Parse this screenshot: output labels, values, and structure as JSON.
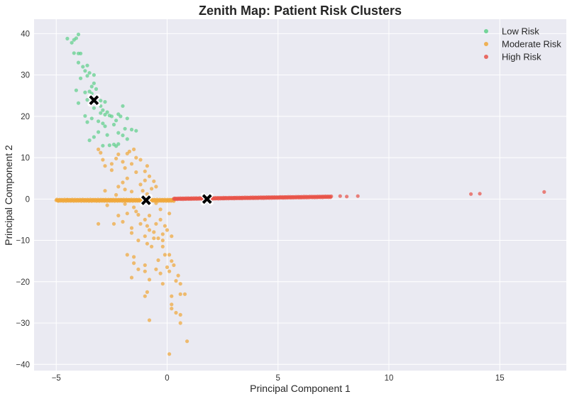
{
  "chart_data": {
    "type": "scatter",
    "title": "Zenith Map: Patient Risk Clusters",
    "xlabel": "Principal Component 1",
    "ylabel": "Principal Component 2",
    "xlim": [
      -6.0,
      18.0
    ],
    "ylim": [
      -41.5,
      43.5
    ],
    "xticks": [
      -5,
      0,
      5,
      10,
      15
    ],
    "yticks": [
      -40,
      -30,
      -20,
      -10,
      0,
      10,
      20,
      30,
      40
    ],
    "grid": true,
    "legend_position": "top-right",
    "series": [
      {
        "name": "Low Risk",
        "color": "#5fd08a",
        "points": [
          [
            -4.5,
            38.8
          ],
          [
            -4.3,
            37.8
          ],
          [
            -4.2,
            38.5
          ],
          [
            -4.0,
            39.8
          ],
          [
            -4.1,
            38.9
          ],
          [
            -4.2,
            35.3
          ],
          [
            -4.0,
            35.2
          ],
          [
            -3.9,
            35.2
          ],
          [
            -4.0,
            33.0
          ],
          [
            -3.8,
            32.0
          ],
          [
            -3.6,
            32.3
          ],
          [
            -3.7,
            31.0
          ],
          [
            -3.5,
            30.5
          ],
          [
            -3.3,
            30.0
          ],
          [
            -3.6,
            29.8
          ],
          [
            -3.9,
            29.2
          ],
          [
            -3.3,
            28.0
          ],
          [
            -3.4,
            27.2
          ],
          [
            -3.2,
            26.6
          ],
          [
            -3.5,
            26.0
          ],
          [
            -3.7,
            25.8
          ],
          [
            -3.4,
            25.5
          ],
          [
            -4.1,
            26.3
          ],
          [
            -4.0,
            23.2
          ],
          [
            -3.6,
            24.0
          ],
          [
            -3.2,
            24.5
          ],
          [
            -3.0,
            23.8
          ],
          [
            -2.8,
            23.5
          ],
          [
            -3.0,
            22.5
          ],
          [
            -3.3,
            22.0
          ],
          [
            -2.9,
            21.5
          ],
          [
            -2.7,
            21.0
          ],
          [
            -2.8,
            20.4
          ],
          [
            -3.0,
            20.8
          ],
          [
            -2.6,
            20.2
          ],
          [
            -2.5,
            20.0
          ],
          [
            -3.7,
            20.1
          ],
          [
            -3.4,
            19.5
          ],
          [
            -3.1,
            18.8
          ],
          [
            -2.9,
            18.3
          ],
          [
            -2.8,
            17.6
          ],
          [
            -3.6,
            18.6
          ],
          [
            -2.2,
            20.5
          ],
          [
            -2.0,
            22.5
          ],
          [
            -2.1,
            20.0
          ],
          [
            -2.3,
            19.0
          ],
          [
            -2.4,
            18.0
          ],
          [
            -1.9,
            17.0
          ],
          [
            -1.8,
            19.5
          ],
          [
            -1.6,
            16.8
          ],
          [
            -1.4,
            16.5
          ],
          [
            -2.2,
            16.0
          ],
          [
            -2.7,
            15.5
          ],
          [
            -3.1,
            16.2
          ],
          [
            -3.3,
            15.0
          ],
          [
            -3.5,
            14.2
          ],
          [
            -2.4,
            13.2
          ],
          [
            -2.2,
            13.3
          ],
          [
            -2.3,
            12.8
          ],
          [
            -2.6,
            13.0
          ],
          [
            -2.9,
            12.9
          ],
          [
            -1.8,
            14.5
          ],
          [
            -2.0,
            15.4
          ]
        ]
      },
      {
        "name": "Moderate Risk",
        "color": "#f0a73a",
        "band": {
          "x_from": -5.0,
          "x_to": 0.3,
          "y": -0.3,
          "count": 170
        },
        "points": [
          [
            -4.9,
            -0.4
          ],
          [
            -4.5,
            -0.2
          ],
          [
            -3.1,
            12.0
          ],
          [
            -3.0,
            11.2
          ],
          [
            -2.9,
            9.5
          ],
          [
            -2.8,
            8.0
          ],
          [
            -2.5,
            7.0
          ],
          [
            -2.5,
            8.5
          ],
          [
            -2.2,
            10.8
          ],
          [
            -2.3,
            9.8
          ],
          [
            -2.0,
            9.0
          ],
          [
            -1.7,
            11.5
          ],
          [
            -1.8,
            11.0
          ],
          [
            -1.5,
            12.0
          ],
          [
            -1.4,
            10.0
          ],
          [
            -1.6,
            8.5
          ],
          [
            -1.2,
            9.5
          ],
          [
            -1.9,
            7.5
          ],
          [
            -1.4,
            6.5
          ],
          [
            -1.8,
            5.0
          ],
          [
            -1.0,
            6.7
          ],
          [
            -0.9,
            8.0
          ],
          [
            -0.8,
            5.5
          ],
          [
            -1.0,
            4.5
          ],
          [
            -1.2,
            3.5
          ],
          [
            -0.7,
            2.5
          ],
          [
            -2.0,
            4.0
          ],
          [
            -2.2,
            3.0
          ],
          [
            -2.8,
            2.0
          ],
          [
            -1.6,
            1.8
          ],
          [
            -0.6,
            4.3
          ],
          [
            -1.1,
            2.0
          ],
          [
            -1.9,
            2.3
          ],
          [
            -2.3,
            1.0
          ],
          [
            -0.5,
            3.0
          ],
          [
            -0.9,
            1.2
          ],
          [
            -3.1,
            -6.0
          ],
          [
            -2.2,
            -4.0
          ],
          [
            -2.0,
            -5.5
          ],
          [
            -1.8,
            -3.5
          ],
          [
            -1.5,
            -2.0
          ],
          [
            -1.3,
            -3.8
          ],
          [
            -2.4,
            -6.0
          ],
          [
            -1.6,
            -7.0
          ],
          [
            -1.2,
            -6.0
          ],
          [
            -1.0,
            -5.0
          ],
          [
            -0.9,
            -6.5
          ],
          [
            -1.6,
            -8.2
          ],
          [
            -1.0,
            -9.0
          ],
          [
            -0.8,
            -7.5
          ],
          [
            -0.6,
            -8.0
          ],
          [
            -0.5,
            -6.0
          ],
          [
            -0.3,
            -5.0
          ],
          [
            -0.1,
            -6.5
          ],
          [
            -0.6,
            -9.5
          ],
          [
            -0.4,
            -9.5
          ],
          [
            -0.2,
            -8.5
          ],
          [
            0.0,
            -7.5
          ],
          [
            0.2,
            -9.0
          ],
          [
            -0.2,
            -10.0
          ],
          [
            -1.3,
            -10.0
          ],
          [
            -0.9,
            -10.8
          ],
          [
            -0.7,
            -11.5
          ],
          [
            -0.2,
            -11.5
          ],
          [
            0.1,
            -13.5
          ],
          [
            -0.1,
            -13.5
          ],
          [
            -1.8,
            -13.5
          ],
          [
            -1.5,
            -14.0
          ],
          [
            -1.5,
            -15.5
          ],
          [
            -1.3,
            -17.0
          ],
          [
            -1.0,
            -16.0
          ],
          [
            -0.4,
            -14.8
          ],
          [
            0.2,
            -15.0
          ],
          [
            0.0,
            -16.5
          ],
          [
            -0.5,
            -17.0
          ],
          [
            -1.0,
            -17.5
          ],
          [
            -1.6,
            -19.0
          ],
          [
            -0.8,
            -19.5
          ],
          [
            -0.3,
            -18.0
          ],
          [
            0.1,
            -17.5
          ],
          [
            0.3,
            -16.0
          ],
          [
            0.4,
            -19.8
          ],
          [
            0.5,
            -18.5
          ],
          [
            0.6,
            -20.5
          ],
          [
            -0.2,
            -20.5
          ],
          [
            -0.9,
            -22.5
          ],
          [
            -1.0,
            -23.5
          ],
          [
            0.2,
            -23.5
          ],
          [
            0.6,
            -23.0
          ],
          [
            0.8,
            -23.0
          ],
          [
            0.2,
            -25.5
          ],
          [
            0.2,
            -26.5
          ],
          [
            0.4,
            -27.5
          ],
          [
            0.6,
            -28.0
          ],
          [
            -0.8,
            -29.3
          ],
          [
            0.6,
            -30.0
          ],
          [
            0.9,
            -34.4
          ],
          [
            0.1,
            -37.5
          ],
          [
            -1.4,
            -3.0
          ],
          [
            -0.3,
            -2.5
          ],
          [
            -0.8,
            -4.0
          ],
          [
            0.1,
            -3.5
          ],
          [
            -2.7,
            -1.5
          ],
          [
            -1.9,
            -1.2
          ],
          [
            -0.5,
            -1.0
          ]
        ]
      },
      {
        "name": "High Risk",
        "color": "#e8544a",
        "band": {
          "x_from": 0.3,
          "x_to": 7.4,
          "y0": 0.05,
          "y1": 0.55,
          "count": 220
        },
        "points": [
          [
            7.8,
            0.7
          ],
          [
            8.1,
            0.6
          ],
          [
            8.6,
            0.7
          ],
          [
            13.7,
            1.2
          ],
          [
            14.1,
            1.3
          ],
          [
            17.0,
            1.7
          ]
        ]
      }
    ],
    "centroids": [
      {
        "x": -3.3,
        "y": 23.9
      },
      {
        "x": -0.95,
        "y": -0.3
      },
      {
        "x": 1.8,
        "y": 0.0
      }
    ]
  }
}
